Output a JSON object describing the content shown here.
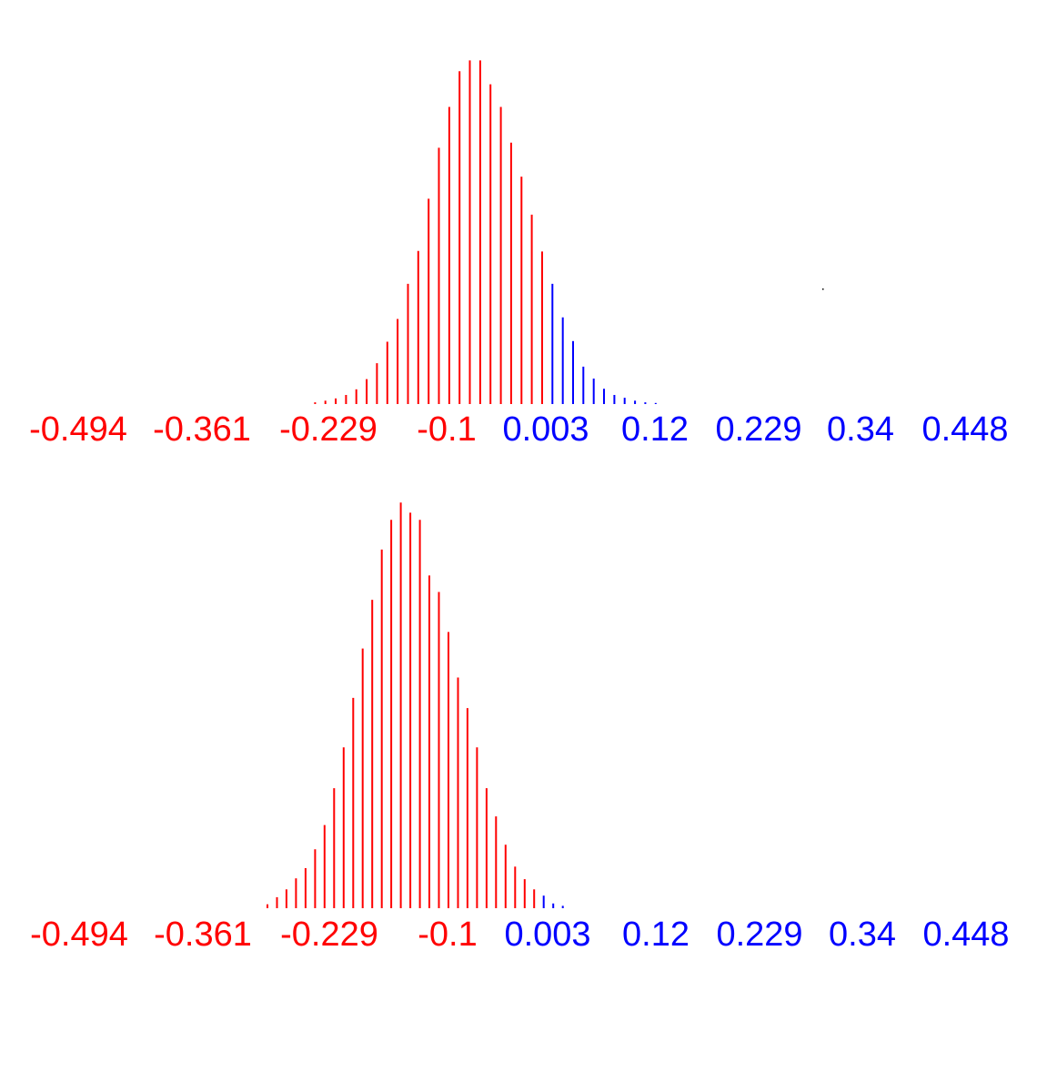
{
  "colors": {
    "negative": "#ff0000",
    "positive": "#0000ff"
  },
  "chart_data": [
    {
      "type": "bar",
      "subtype": "spike-histogram",
      "x_start": -0.23,
      "x_step": 0.0104,
      "values": [
        0.3,
        0.6,
        1,
        1.6,
        2.6,
        4.4,
        7.2,
        11,
        15,
        21.2,
        27,
        36.2,
        45.2,
        52.4,
        58.7,
        60.6,
        60.6,
        56.4,
        52.4,
        46.1,
        40.1,
        33.4,
        26.9,
        21.2,
        15.3,
        11.1,
        6.6,
        4.5,
        2.7,
        1.6,
        1.1,
        0.6,
        0.3,
        0.2
      ],
      "ylim": [
        0,
        65
      ],
      "xlim": [
        -0.52,
        0.47
      ],
      "tick_labels": [
        "-0.494",
        "-0.361",
        "-0.229",
        "-0.1",
        "0.003",
        "0.12",
        "0.229",
        "0.34",
        "0.448"
      ],
      "color_split": 0.0,
      "grid": false
    },
    {
      "type": "bar",
      "subtype": "spike-histogram",
      "x_start": -0.278,
      "x_step": 0.0096,
      "values": [
        0.5,
        1.4,
        2.4,
        3.8,
        5.1,
        7.5,
        10.6,
        15.3,
        20.5,
        26.8,
        33.1,
        39.3,
        45.7,
        49.5,
        51.7,
        50.4,
        49.5,
        42.4,
        40.3,
        35.2,
        29.4,
        25.5,
        20.5,
        15.3,
        11.7,
        8.1,
        5.3,
        3.7,
        2.4,
        1.6,
        0.6,
        0.3
      ],
      "ylim": [
        0,
        53
      ],
      "xlim": [
        -0.52,
        0.47
      ],
      "tick_labels": [
        "-0.494",
        "-0.361",
        "-0.229",
        "-0.1",
        "0.003",
        "0.12",
        "0.229",
        "0.34",
        "0.448"
      ],
      "color_split": 0.0,
      "grid": false
    }
  ]
}
